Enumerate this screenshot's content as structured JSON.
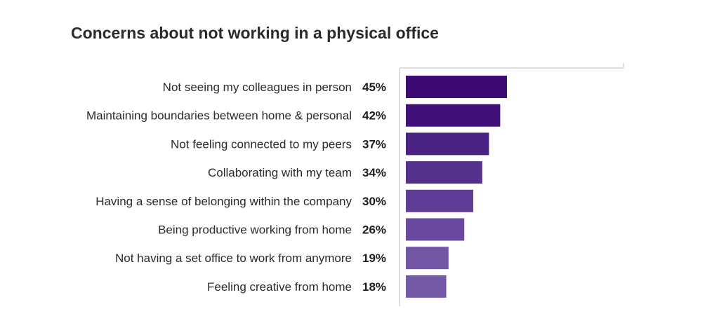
{
  "chart_data": {
    "type": "bar",
    "orientation": "horizontal",
    "title": "Concerns about not working in a physical office",
    "categories": [
      "Not seeing my colleagues in person",
      "Maintaining boundaries between home & personal",
      "Not feeling connected to my peers",
      "Collaborating with my team",
      "Having a sense of belonging within the company",
      "Being productive working from home",
      "Not having a set office to work from anymore",
      "Feeling creative from home"
    ],
    "values": [
      45,
      42,
      37,
      34,
      30,
      26,
      19,
      18
    ],
    "value_labels": [
      "45%",
      "42%",
      "37%",
      "34%",
      "30%",
      "26%",
      "19%",
      "18%"
    ],
    "unit": "%",
    "xlim": [
      0,
      100
    ],
    "grid": false,
    "legend": "none",
    "colors": [
      "#3c0a72",
      "#3f1178",
      "#4a2284",
      "#53318c",
      "#5f3c95",
      "#6949a0",
      "#7355a6",
      "#7459a7"
    ],
    "axis_color": "#dedede"
  }
}
